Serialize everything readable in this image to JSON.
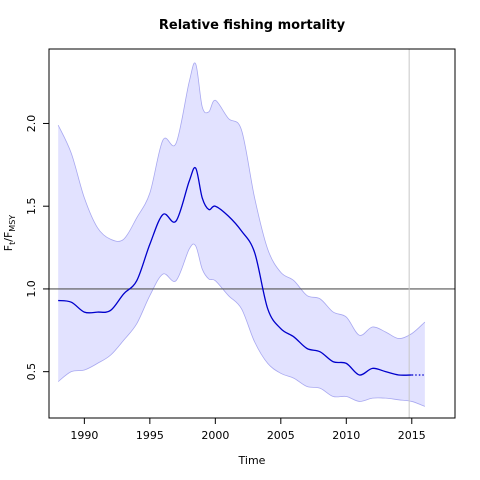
{
  "chart_data": {
    "type": "line",
    "title": "Relative fishing mortality",
    "xlabel": "Time",
    "ylabel_main": "F",
    "ylabel_sub1": "t",
    "ylabel_sep": "/F",
    "ylabel_sub2": "MSY",
    "xlim": [
      1987.3,
      2018.3
    ],
    "ylim": [
      0.22,
      2.45
    ],
    "x_ticks": [
      1990,
      1995,
      2000,
      2005,
      2010,
      2015
    ],
    "x_tick_labels": [
      "1990",
      "1995",
      "2000",
      "2005",
      "2010",
      "2015"
    ],
    "y_ticks": [
      0.5,
      1.0,
      1.5,
      2.0
    ],
    "y_tick_labels": [
      "0.5",
      "1.0",
      "1.5",
      "2.0"
    ],
    "reference_line": 1.0,
    "vertical_line": 2014.8,
    "series": [
      {
        "role": "estimate",
        "x": [
          1988,
          1989,
          1990,
          1991,
          1992,
          1993,
          1994,
          1995,
          1996,
          1997,
          1998,
          1998.5,
          1999,
          1999.5,
          2000,
          2001,
          2002,
          2003,
          2004,
          2005,
          2006,
          2007,
          2008,
          2009,
          2010,
          2011,
          2012,
          2013,
          2014,
          2015
        ],
        "values": [
          0.93,
          0.92,
          0.86,
          0.86,
          0.87,
          0.97,
          1.05,
          1.27,
          1.45,
          1.41,
          1.65,
          1.73,
          1.55,
          1.48,
          1.5,
          1.44,
          1.35,
          1.22,
          0.88,
          0.76,
          0.71,
          0.64,
          0.62,
          0.56,
          0.55,
          0.48,
          0.52,
          0.5,
          0.48,
          0.48
        ]
      },
      {
        "role": "forecast",
        "x": [
          2015,
          2016
        ],
        "values": [
          0.48,
          0.48
        ]
      }
    ],
    "confidence_band": {
      "x": [
        1988,
        1989,
        1990,
        1991,
        1992,
        1993,
        1994,
        1995,
        1996,
        1997,
        1998,
        1998.5,
        1999,
        1999.5,
        2000,
        2001,
        2002,
        2003,
        2004,
        2005,
        2006,
        2007,
        2008,
        2009,
        2010,
        2011,
        2012,
        2013,
        2014,
        2015,
        2016
      ],
      "upper": [
        1.99,
        1.82,
        1.55,
        1.37,
        1.3,
        1.3,
        1.43,
        1.58,
        1.9,
        1.88,
        2.25,
        2.36,
        2.1,
        2.07,
        2.14,
        2.03,
        1.96,
        1.55,
        1.24,
        1.1,
        1.05,
        0.96,
        0.94,
        0.86,
        0.83,
        0.72,
        0.77,
        0.74,
        0.7,
        0.73,
        0.8
      ],
      "lower": [
        0.44,
        0.5,
        0.51,
        0.55,
        0.6,
        0.69,
        0.79,
        0.96,
        1.09,
        1.05,
        1.24,
        1.26,
        1.12,
        1.06,
        1.05,
        0.96,
        0.88,
        0.68,
        0.55,
        0.49,
        0.46,
        0.41,
        0.4,
        0.35,
        0.35,
        0.32,
        0.34,
        0.34,
        0.33,
        0.32,
        0.29
      ]
    },
    "colors": {
      "line": "#0000cc",
      "band_fill": "#e2e2ff",
      "band_edge": "#a8a8f0",
      "reference": "#555555",
      "vertical": "#c8c8c8",
      "axis": "#000000"
    },
    "grid": false,
    "legend": "none"
  }
}
